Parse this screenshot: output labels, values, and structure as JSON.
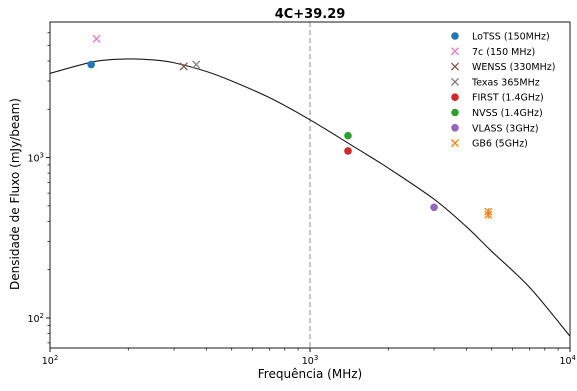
{
  "chart_data": {
    "type": "scatter",
    "title": "4C+39.29",
    "xlabel": "Frequência (MHz)",
    "ylabel": "Densidade de Fluxo (mJy/beam)",
    "x_scale": "log",
    "y_scale": "log",
    "xlim": [
      100,
      10000
    ],
    "ylim": [
      65,
      7000
    ],
    "x_ticks": [
      {
        "value": 100,
        "base": "10",
        "exp": "2"
      },
      {
        "value": 1000,
        "base": "10",
        "exp": "3"
      },
      {
        "value": 10000,
        "base": "10",
        "exp": "4"
      }
    ],
    "y_ticks": [
      {
        "value": 100,
        "base": "10",
        "exp": "2"
      },
      {
        "value": 1000,
        "base": "10",
        "exp": "3"
      }
    ],
    "grid": false,
    "legend_position": "top-right",
    "vertical_line": {
      "x": 1000,
      "style": "dashed",
      "color": "#a0a0a0"
    },
    "fit_curve": {
      "color": "#1a1a1a",
      "x": [
        100,
        150,
        200,
        250,
        300,
        400,
        500,
        700,
        1000,
        1500,
        2000,
        3000,
        4000,
        5000,
        7000,
        10000
      ],
      "y": [
        3350,
        3980,
        4120,
        4060,
        3900,
        3440,
        3000,
        2360,
        1720,
        1150,
        860,
        550,
        370,
        260,
        155,
        77
      ]
    },
    "series": [
      {
        "name": "LoTSS (150MHz)",
        "marker": "circle",
        "color": "#1f77b4",
        "x": [
          144
        ],
        "y": [
          3800
        ]
      },
      {
        "name": "7c (150 MHz)",
        "marker": "x",
        "color": "#e377c2",
        "x": [
          151
        ],
        "y": [
          5500
        ]
      },
      {
        "name": "WENSS (330MHz)",
        "marker": "x",
        "color": "#8c564b",
        "x": [
          327
        ],
        "y": [
          3700
        ]
      },
      {
        "name": "Texas 365MHz",
        "marker": "x",
        "color": "#7f7f7f",
        "x": [
          365
        ],
        "y": [
          3800
        ]
      },
      {
        "name": "FIRST (1.4GHz)",
        "marker": "circle",
        "color": "#d62728",
        "x": [
          1400
        ],
        "y": [
          1100
        ]
      },
      {
        "name": "NVSS (1.4GHz)",
        "marker": "circle",
        "color": "#2ca02c",
        "x": [
          1400
        ],
        "y": [
          1370
        ]
      },
      {
        "name": "VLASS (3GHz)",
        "marker": "circle",
        "color": "#9467bd",
        "x": [
          3000
        ],
        "y": [
          490
        ]
      },
      {
        "name": "GB6 (5GHz)",
        "marker": "x",
        "color": "#ff7f0e",
        "x": [
          4850,
          4850
        ],
        "y": [
          440,
          460
        ],
        "error": [
          25,
          25
        ]
      }
    ]
  }
}
